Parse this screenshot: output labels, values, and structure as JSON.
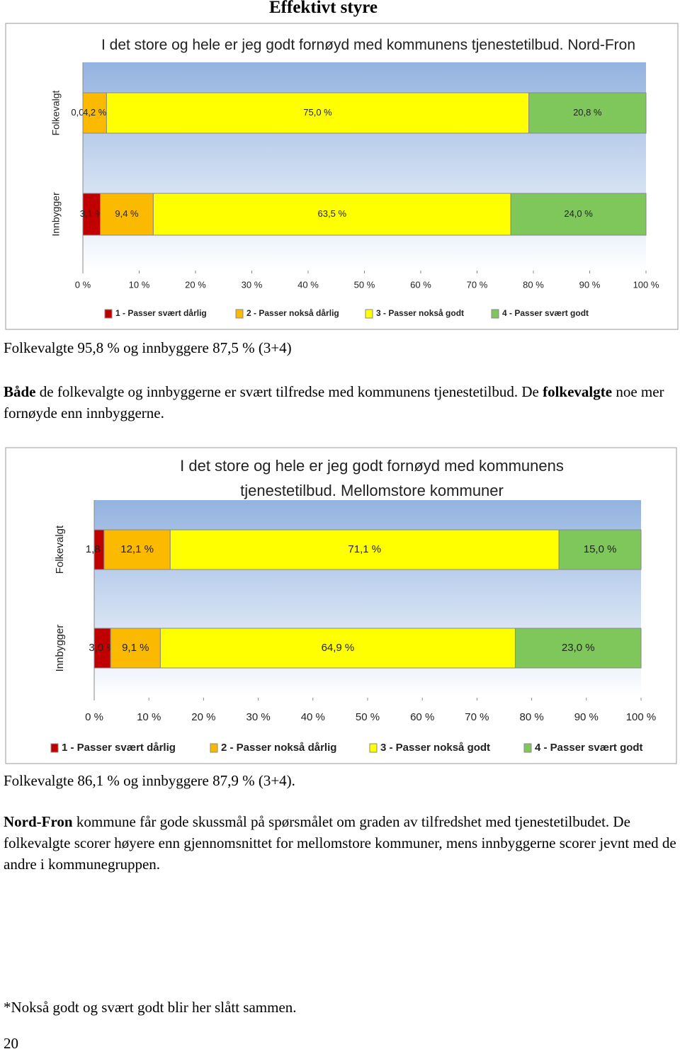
{
  "header": {
    "title": "Effektivt styre"
  },
  "chart_data": [
    {
      "type": "bar",
      "orientation": "horizontal",
      "stacked": true,
      "title": "I det store og hele er jeg godt fornøyd med kommunens tjenestetilbud. Nord-Fron",
      "categories": [
        "Folkevalgt",
        "Innbygger"
      ],
      "series": [
        {
          "name": "1 - Passer svært dårlig",
          "color": "#c00000",
          "values": [
            0.0,
            3.1
          ],
          "value_labels": [
            "0,0 %",
            "3,1 %"
          ]
        },
        {
          "name": "2 - Passer nokså dårlig",
          "color": "#fbb900",
          "values": [
            4.2,
            9.4
          ],
          "value_labels": [
            "4,2 %",
            "9,4 %"
          ]
        },
        {
          "name": "3 - Passer nokså godt",
          "color": "#ffff00",
          "values": [
            75.0,
            63.5
          ],
          "value_labels": [
            "75,0 %",
            "63,5 %"
          ]
        },
        {
          "name": "4 - Passer svært godt",
          "color": "#7fc75a",
          "values": [
            20.8,
            24.0
          ],
          "value_labels": [
            "20,8 %",
            "24,0 %"
          ]
        }
      ],
      "xlim": [
        0,
        100
      ],
      "xticks": [
        {
          "value": 0,
          "label": "0 %"
        },
        {
          "value": 10,
          "label": "10 %"
        },
        {
          "value": 20,
          "label": "20 %"
        },
        {
          "value": 30,
          "label": "30 %"
        },
        {
          "value": 40,
          "label": "40 %"
        },
        {
          "value": 50,
          "label": "50 %"
        },
        {
          "value": 60,
          "label": "60 %"
        },
        {
          "value": 70,
          "label": "70 %"
        },
        {
          "value": 80,
          "label": "80 %"
        },
        {
          "value": 90,
          "label": "90 %"
        },
        {
          "value": 100,
          "label": "100 %"
        }
      ]
    },
    {
      "type": "bar",
      "orientation": "horizontal",
      "stacked": true,
      "title": "I det store og hele er jeg godt fornøyd med kommunens tjenestetilbud. Mellomstore kommuner",
      "categories": [
        "Folkevalgt",
        "Innbygger"
      ],
      "series": [
        {
          "name": "1 - Passer svært dårlig",
          "color": "#c00000",
          "values": [
            1.8,
            3.0
          ],
          "value_labels": [
            "1,8 %",
            "3,0 %"
          ]
        },
        {
          "name": "2 - Passer nokså dårlig",
          "color": "#fbb900",
          "values": [
            12.1,
            9.1
          ],
          "value_labels": [
            "12,1 %",
            "9,1 %"
          ]
        },
        {
          "name": "3 - Passer nokså godt",
          "color": "#ffff00",
          "values": [
            71.1,
            64.9
          ],
          "value_labels": [
            "71,1 %",
            "64,9 %"
          ]
        },
        {
          "name": "4 - Passer svært godt",
          "color": "#7fc75a",
          "values": [
            15.0,
            23.0
          ],
          "value_labels": [
            "15,0 %",
            "23,0 %"
          ]
        }
      ],
      "xlim": [
        0,
        100
      ],
      "xticks": [
        {
          "value": 0,
          "label": "0 %"
        },
        {
          "value": 10,
          "label": "10 %"
        },
        {
          "value": 20,
          "label": "20 %"
        },
        {
          "value": 30,
          "label": "30 %"
        },
        {
          "value": 40,
          "label": "40 %"
        },
        {
          "value": 50,
          "label": "50 %"
        },
        {
          "value": 60,
          "label": "60 %"
        },
        {
          "value": 70,
          "label": "70 %"
        },
        {
          "value": 80,
          "label": "80 %"
        },
        {
          "value": 90,
          "label": "90 %"
        },
        {
          "value": 100,
          "label": "100 %"
        }
      ]
    }
  ],
  "paragraphs": [
    [
      "Folkevalgte 95,8 % og innbyggere 87,5 % (3+4)"
    ],
    [
      "Både",
      " de folkevalgte og innbyggerne er svært tilfredse med kommunens tjenestetilbud. De ",
      "folkevalgte",
      " noe mer fornøyde enn innbyggerne."
    ],
    [
      "Folkevalgte 86,1 % og innbyggere 87,9 % (3+4)."
    ],
    [
      "Nord-Fron",
      " kommune får gode skussmål på spørsmålet om graden av tilfredshet med tjenestetilbudet. De folkevalgte scorer høyere enn gjennomsnittet for mellomstore kommuner, mens innbyggerne scorer jevnt med de andre i kommunegruppen."
    ]
  ],
  "footnote": "*Nokså godt og svært godt blir her slått sammen.",
  "page_number": "20"
}
